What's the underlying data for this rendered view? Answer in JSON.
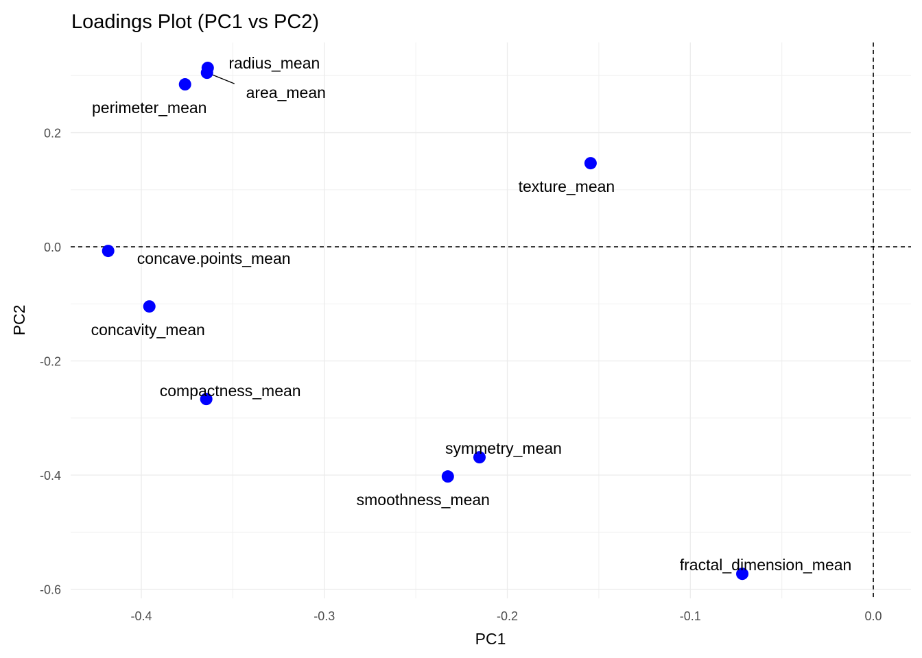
{
  "chart_data": {
    "type": "scatter",
    "title": "Loadings Plot (PC1 vs PC2)",
    "xlabel": "PC1",
    "ylabel": "PC2",
    "xlim": [
      -0.4386,
      0.0206
    ],
    "ylim": [
      -0.616,
      0.358
    ],
    "xticks": [
      -0.4,
      -0.3,
      -0.2,
      -0.1,
      0.0
    ],
    "xtick_labels": [
      "-0.4",
      "-0.3",
      "-0.2",
      "-0.1",
      "0.0"
    ],
    "yticks": [
      0.2,
      0.0,
      -0.2,
      -0.4,
      -0.6
    ],
    "ytick_labels": [
      "0.2",
      "0.0",
      "-0.2",
      "-0.4",
      "-0.6"
    ],
    "grid": true,
    "reference_lines": {
      "x": 0,
      "y": 0,
      "style": "dashed"
    },
    "point_color": "#0000FF",
    "points": [
      {
        "label": "radius_mean",
        "x": -0.3637,
        "y": 0.3135
      },
      {
        "label": "area_mean",
        "x": -0.3641,
        "y": 0.305
      },
      {
        "label": "perimeter_mean",
        "x": -0.3761,
        "y": 0.2847
      },
      {
        "label": "texture_mean",
        "x": -0.1545,
        "y": 0.1465
      },
      {
        "label": "concave.points_mean",
        "x": -0.4181,
        "y": -0.0072
      },
      {
        "label": "concavity_mean",
        "x": -0.3956,
        "y": -0.1045
      },
      {
        "label": "compactness_mean",
        "x": -0.3645,
        "y": -0.2667
      },
      {
        "label": "symmetry_mean",
        "x": -0.2152,
        "y": -0.3688
      },
      {
        "label": "smoothness_mean",
        "x": -0.2325,
        "y": -0.4024
      },
      {
        "label": "fractal_dimension_mean",
        "x": -0.0716,
        "y": -0.573
      }
    ]
  }
}
